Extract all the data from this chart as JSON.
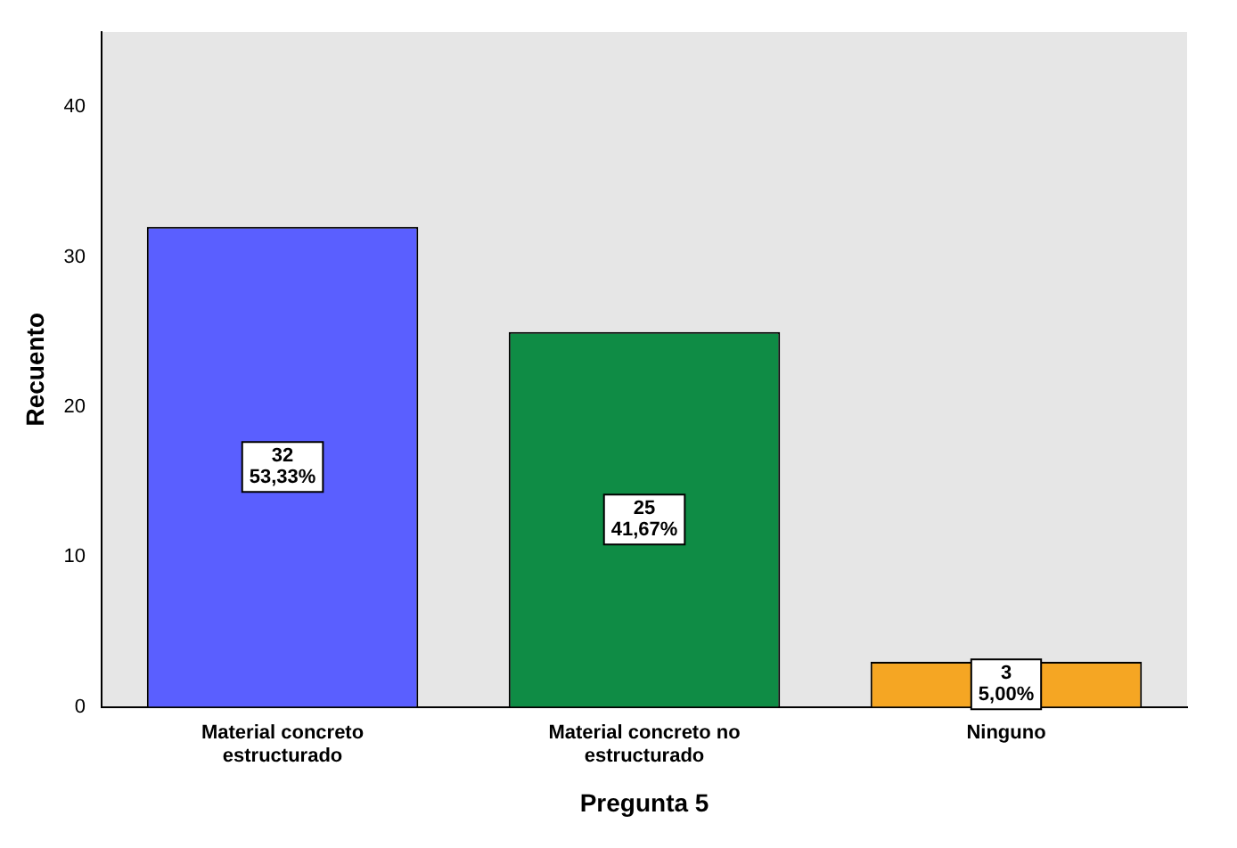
{
  "chart_data": {
    "type": "bar",
    "xlabel": "Pregunta 5",
    "ylabel": "Recuento",
    "categories": [
      "Material concreto estructurado",
      "Material concreto no estructurado",
      "Ninguno"
    ],
    "values": [
      32,
      25,
      3
    ],
    "colors": [
      "#5a5fff",
      "#0f8c45",
      "#f5a623"
    ],
    "value_labels": [
      "32\n53,33%",
      "25\n41,67%",
      "3\n5,00%"
    ],
    "ylim": [
      0,
      45
    ],
    "yticks": [
      0,
      10,
      20,
      30,
      40
    ],
    "grid": false,
    "legend": false
  }
}
